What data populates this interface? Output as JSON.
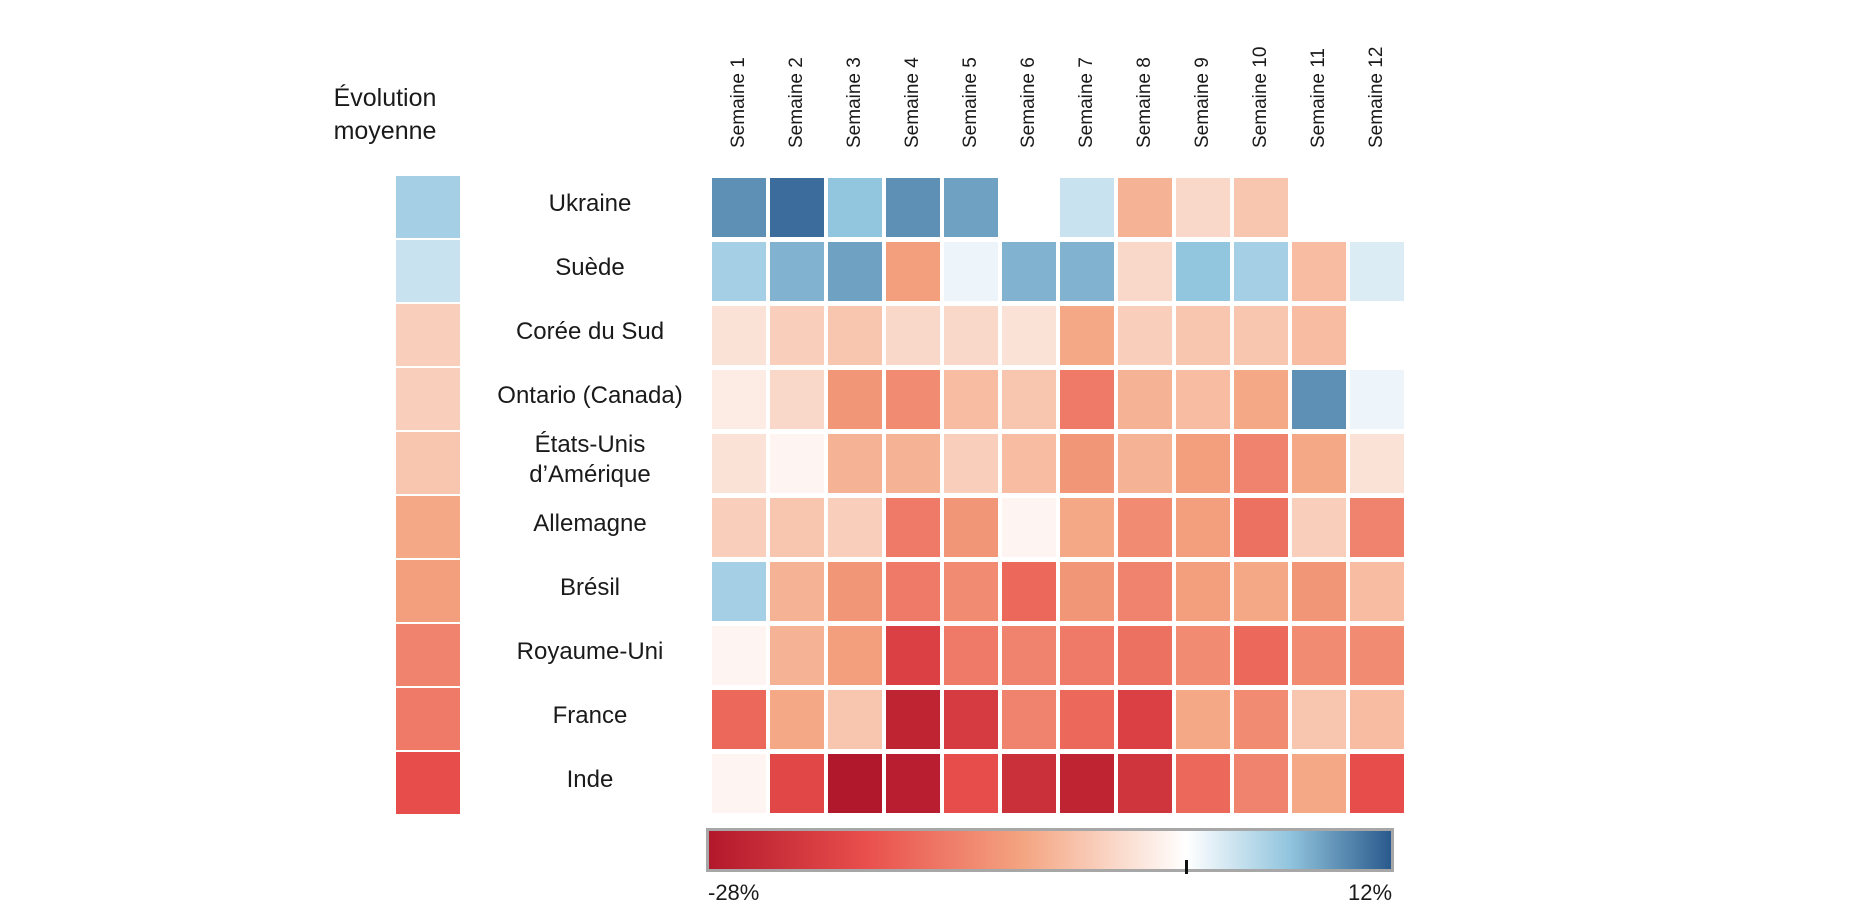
{
  "chart_data": {
    "type": "heatmap",
    "title": "",
    "avg_column_title": "Évolution\nmoyenne",
    "columns": [
      "Semaine 1",
      "Semaine 2",
      "Semaine 3",
      "Semaine 4",
      "Semaine 5",
      "Semaine 6",
      "Semaine 7",
      "Semaine 8",
      "Semaine 9",
      "Semaine 10",
      "Semaine 11",
      "Semaine 12"
    ],
    "rows": [
      {
        "label": "Ukraine",
        "average": 5,
        "values": [
          9,
          11,
          6,
          9,
          8,
          0,
          3,
          -8,
          -4,
          -6,
          null,
          null
        ]
      },
      {
        "label": "Suède",
        "average": 3,
        "values": [
          5,
          7,
          8,
          -10,
          1,
          7,
          7,
          -4,
          6,
          5,
          -7,
          2
        ]
      },
      {
        "label": "Corée du Sud",
        "average": -5,
        "values": [
          -3,
          -5,
          -6,
          -4,
          -4,
          -3,
          -9,
          -5,
          -6,
          -6,
          -7,
          null
        ]
      },
      {
        "label": "Ontario (Canada)",
        "average": -5,
        "values": [
          -2,
          -4,
          -11,
          -12,
          -7,
          -6,
          -14,
          -8,
          -7,
          -9,
          9,
          1
        ]
      },
      {
        "label": "États-Unis\nd’Amérique",
        "average": -6,
        "values": [
          -3,
          -1,
          -8,
          -8,
          -5,
          -7,
          -11,
          -8,
          -10,
          -13,
          -9,
          -3
        ]
      },
      {
        "label": "Allemagne",
        "average": -9,
        "values": [
          -5,
          -6,
          -5,
          -14,
          -11,
          -1,
          -9,
          -12,
          -10,
          -15,
          -5,
          -13
        ]
      },
      {
        "label": "Brésil",
        "average": -10,
        "values": [
          5,
          -8,
          -11,
          -14,
          -12,
          -16,
          -11,
          -13,
          -10,
          -9,
          -11,
          -7
        ]
      },
      {
        "label": "Royaume-Uni",
        "average": -13,
        "values": [
          -1,
          -8,
          -10,
          -21,
          -14,
          -13,
          -14,
          -15,
          -12,
          -16,
          -12,
          -12
        ]
      },
      {
        "label": "France",
        "average": -14,
        "values": [
          -16,
          -9,
          -6,
          -26,
          -22,
          -13,
          -16,
          -21,
          -9,
          -12,
          -6,
          -7
        ]
      },
      {
        "label": "Inde",
        "average": -19,
        "values": [
          -1,
          -20,
          -28,
          -27,
          -19,
          -24,
          -26,
          -23,
          -16,
          -13,
          -9,
          -19
        ]
      }
    ],
    "scale": {
      "min": -28,
      "max": 12,
      "zero": 0,
      "min_label": "-28%",
      "max_label": "12%",
      "colors": [
        "#b2182b",
        "#e94f4c",
        "#f4a582",
        "#ffffff",
        "#92c5de",
        "#2a5a8d"
      ]
    },
    "grid": false,
    "legend": "bottom"
  }
}
